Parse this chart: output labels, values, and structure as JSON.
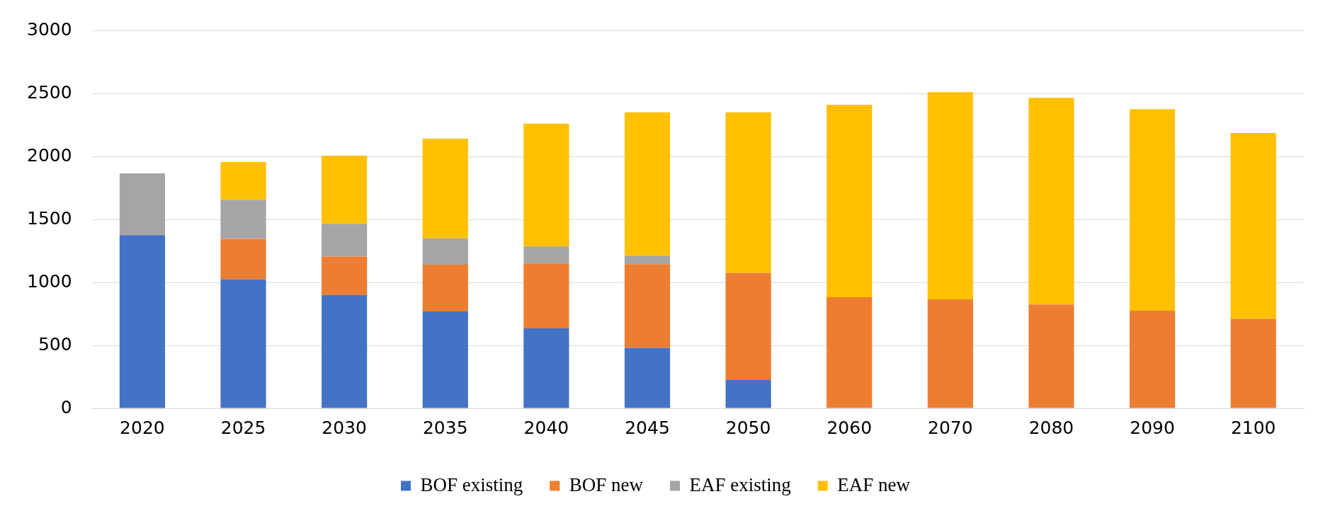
{
  "chart_data": {
    "type": "bar",
    "stacked": true,
    "categories": [
      "2020",
      "2025",
      "2030",
      "2035",
      "2040",
      "2045",
      "2050",
      "2060",
      "2070",
      "2080",
      "2090",
      "2100"
    ],
    "series": [
      {
        "name": "BOF existing",
        "color": "#4472c4",
        "values": [
          1375,
          1025,
          900,
          770,
          635,
          480,
          225,
          null,
          null,
          null,
          null,
          null
        ]
      },
      {
        "name": "BOF new",
        "color": "#ed7d31",
        "values": [
          null,
          320,
          305,
          370,
          515,
          665,
          850,
          882,
          865,
          825,
          775,
          710
        ]
      },
      {
        "name": "EAF existing",
        "color": "#a5a5a5",
        "values": [
          490,
          310,
          260,
          210,
          135,
          65,
          null,
          null,
          null,
          null,
          null,
          null
        ]
      },
      {
        "name": "EAF new",
        "color": "#ffc000",
        "values": [
          null,
          300,
          540,
          790,
          975,
          1140,
          1275,
          1528,
          1645,
          1640,
          1600,
          1475
        ]
      }
    ],
    "ylim": [
      0,
      3000
    ],
    "yticks": [
      0,
      500,
      1000,
      1500,
      2000,
      2500,
      3000
    ],
    "grid": "y",
    "legend": "bottom"
  }
}
